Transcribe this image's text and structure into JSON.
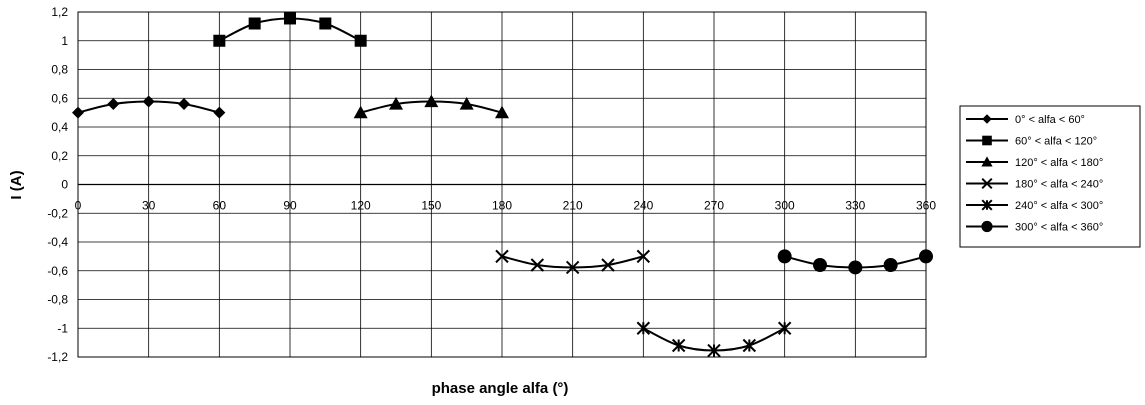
{
  "chart_data": {
    "type": "line",
    "title": "",
    "xlabel": "phase angle alfa (°)",
    "ylabel": "I (A)",
    "xlim": [
      0,
      360
    ],
    "ylim": [
      -1.2,
      1.2
    ],
    "x_ticks": [
      "0",
      "30",
      "60",
      "90",
      "120",
      "150",
      "180",
      "210",
      "240",
      "270",
      "300",
      "330",
      "360"
    ],
    "y_ticks": [
      "1,2",
      "1",
      "0,8",
      "0,6",
      "0,4",
      "0,2",
      "0",
      "-0,2",
      "-0,4",
      "-0,6",
      "-0,8",
      "-1",
      "-1,2"
    ],
    "grid": true,
    "legend_position": "right",
    "series": [
      {
        "name": "0° < alfa < 60°",
        "marker": "diamond",
        "x": [
          0,
          15,
          30,
          45,
          60
        ],
        "y": [
          0.5,
          0.56,
          0.577,
          0.56,
          0.5
        ]
      },
      {
        "name": "60° < alfa < 120°",
        "marker": "square",
        "x": [
          60,
          75,
          90,
          105,
          120
        ],
        "y": [
          1.0,
          1.12,
          1.155,
          1.12,
          1.0
        ]
      },
      {
        "name": "120° < alfa < 180°",
        "marker": "triangle",
        "x": [
          120,
          135,
          150,
          165,
          180
        ],
        "y": [
          0.5,
          0.56,
          0.577,
          0.56,
          0.5
        ]
      },
      {
        "name": "180° < alfa < 240°",
        "marker": "x",
        "x": [
          180,
          195,
          210,
          225,
          240
        ],
        "y": [
          -0.5,
          -0.56,
          -0.577,
          -0.56,
          -0.5
        ]
      },
      {
        "name": "240° < alfa < 300°",
        "marker": "star",
        "x": [
          240,
          255,
          270,
          285,
          300
        ],
        "y": [
          -1.0,
          -1.12,
          -1.155,
          -1.12,
          -1.0
        ]
      },
      {
        "name": "300° < alfa < 360°",
        "marker": "circle",
        "x": [
          300,
          315,
          330,
          345,
          360
        ],
        "y": [
          -0.5,
          -0.56,
          -0.577,
          -0.56,
          -0.5
        ]
      }
    ]
  }
}
